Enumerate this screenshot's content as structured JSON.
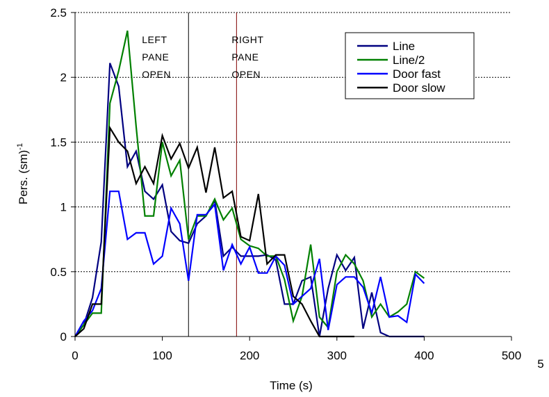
{
  "chart_data": {
    "type": "line",
    "xlabel": "Time (s)",
    "ylabel": "Pers. (sm)",
    "ylabel_superscript": "-1",
    "xlim": [
      0,
      500
    ],
    "ylim": [
      0,
      2.5
    ],
    "x_ticks": [
      "0",
      "100",
      "200",
      "300",
      "400",
      "500"
    ],
    "y_ticks": [
      "0",
      "0.5",
      "1",
      "1.5",
      "2",
      "2.5"
    ],
    "x_tick_values": [
      0,
      100,
      200,
      300,
      400,
      500
    ],
    "y_tick_values": [
      0,
      0.5,
      1,
      1.5,
      2,
      2.5
    ],
    "grid": "horizontal dashed",
    "legend_position": "top-right",
    "annotations": [
      {
        "lines": [
          "LEFT",
          "PANE",
          "OPEN"
        ],
        "x": 130
      },
      {
        "lines": [
          "RIGHT",
          "PANE",
          "OPEN"
        ],
        "x": 185
      }
    ],
    "vlines": [
      {
        "x": 130,
        "color": "#000000"
      },
      {
        "x": 185,
        "color": "#800000"
      }
    ],
    "stray_text": "5",
    "series": [
      {
        "name": "Line",
        "color": "#000080",
        "points": [
          [
            0,
            0
          ],
          [
            10,
            0.09
          ],
          [
            20,
            0.3
          ],
          [
            30,
            0.73
          ],
          [
            40,
            2.11
          ],
          [
            50,
            1.93
          ],
          [
            60,
            1.31
          ],
          [
            70,
            1.43
          ],
          [
            80,
            1.12
          ],
          [
            90,
            1.06
          ],
          [
            100,
            1.17
          ],
          [
            110,
            0.81
          ],
          [
            120,
            0.74
          ],
          [
            130,
            0.72
          ],
          [
            140,
            0.87
          ],
          [
            150,
            0.93
          ],
          [
            160,
            1.05
          ],
          [
            170,
            0.62
          ],
          [
            180,
            0.69
          ],
          [
            190,
            0.62
          ],
          [
            200,
            0.62
          ],
          [
            210,
            0.62
          ],
          [
            220,
            0.63
          ],
          [
            230,
            0.59
          ],
          [
            240,
            0.25
          ],
          [
            250,
            0.25
          ],
          [
            260,
            0.43
          ],
          [
            270,
            0.46
          ],
          [
            280,
            0.0
          ],
          [
            290,
            0.37
          ],
          [
            300,
            0.63
          ],
          [
            310,
            0.51
          ],
          [
            320,
            0.61
          ],
          [
            330,
            0.06
          ],
          [
            340,
            0.34
          ],
          [
            350,
            0.03
          ],
          [
            360,
            0.0
          ],
          [
            380,
            0.0
          ],
          [
            400,
            0.0
          ]
        ]
      },
      {
        "name": "Line/2",
        "color": "#008000",
        "points": [
          [
            0,
            0
          ],
          [
            10,
            0.09
          ],
          [
            20,
            0.18
          ],
          [
            30,
            0.18
          ],
          [
            40,
            1.8
          ],
          [
            50,
            2.05
          ],
          [
            60,
            2.36
          ],
          [
            70,
            1.62
          ],
          [
            80,
            0.93
          ],
          [
            90,
            0.93
          ],
          [
            100,
            1.5
          ],
          [
            110,
            1.24
          ],
          [
            120,
            1.36
          ],
          [
            130,
            0.75
          ],
          [
            140,
            0.93
          ],
          [
            150,
            0.93
          ],
          [
            160,
            1.06
          ],
          [
            170,
            0.9
          ],
          [
            180,
            0.99
          ],
          [
            190,
            0.75
          ],
          [
            200,
            0.7
          ],
          [
            210,
            0.68
          ],
          [
            220,
            0.62
          ],
          [
            230,
            0.62
          ],
          [
            240,
            0.44
          ],
          [
            250,
            0.12
          ],
          [
            260,
            0.31
          ],
          [
            270,
            0.71
          ],
          [
            280,
            0.15
          ],
          [
            290,
            0.07
          ],
          [
            300,
            0.5
          ],
          [
            310,
            0.63
          ],
          [
            320,
            0.56
          ],
          [
            330,
            0.43
          ],
          [
            340,
            0.15
          ],
          [
            350,
            0.25
          ],
          [
            360,
            0.15
          ],
          [
            370,
            0.19
          ],
          [
            380,
            0.25
          ],
          [
            390,
            0.5
          ],
          [
            400,
            0.45
          ]
        ]
      },
      {
        "name": "Door fast",
        "color": "#0000ff",
        "points": [
          [
            0,
            0
          ],
          [
            10,
            0.12
          ],
          [
            20,
            0.2
          ],
          [
            30,
            0.37
          ],
          [
            40,
            1.12
          ],
          [
            50,
            1.12
          ],
          [
            60,
            0.75
          ],
          [
            70,
            0.8
          ],
          [
            80,
            0.8
          ],
          [
            90,
            0.56
          ],
          [
            100,
            0.62
          ],
          [
            110,
            0.99
          ],
          [
            120,
            0.87
          ],
          [
            130,
            0.43
          ],
          [
            140,
            0.94
          ],
          [
            150,
            0.94
          ],
          [
            160,
            1.02
          ],
          [
            170,
            0.51
          ],
          [
            180,
            0.71
          ],
          [
            190,
            0.56
          ],
          [
            200,
            0.69
          ],
          [
            210,
            0.49
          ],
          [
            220,
            0.49
          ],
          [
            230,
            0.62
          ],
          [
            240,
            0.55
          ],
          [
            250,
            0.25
          ],
          [
            260,
            0.31
          ],
          [
            270,
            0.37
          ],
          [
            280,
            0.6
          ],
          [
            290,
            0.05
          ],
          [
            300,
            0.4
          ],
          [
            310,
            0.46
          ],
          [
            320,
            0.46
          ],
          [
            330,
            0.38
          ],
          [
            340,
            0.18
          ],
          [
            350,
            0.46
          ],
          [
            360,
            0.15
          ],
          [
            370,
            0.16
          ],
          [
            380,
            0.11
          ],
          [
            390,
            0.48
          ],
          [
            400,
            0.41
          ]
        ]
      },
      {
        "name": "Door slow",
        "color": "#000000",
        "points": [
          [
            0,
            0
          ],
          [
            10,
            0.06
          ],
          [
            20,
            0.25
          ],
          [
            30,
            0.25
          ],
          [
            40,
            1.61
          ],
          [
            50,
            1.5
          ],
          [
            60,
            1.43
          ],
          [
            70,
            1.18
          ],
          [
            80,
            1.31
          ],
          [
            90,
            1.18
          ],
          [
            100,
            1.55
          ],
          [
            110,
            1.37
          ],
          [
            120,
            1.49
          ],
          [
            130,
            1.3
          ],
          [
            140,
            1.46
          ],
          [
            150,
            1.11
          ],
          [
            160,
            1.46
          ],
          [
            170,
            1.07
          ],
          [
            180,
            1.12
          ],
          [
            190,
            0.77
          ],
          [
            200,
            0.74
          ],
          [
            210,
            1.1
          ],
          [
            220,
            0.56
          ],
          [
            230,
            0.63
          ],
          [
            240,
            0.63
          ],
          [
            250,
            0.31
          ],
          [
            260,
            0.25
          ],
          [
            270,
            0.12
          ],
          [
            280,
            0.0
          ],
          [
            290,
            0.0
          ],
          [
            300,
            0.0
          ],
          [
            310,
            0.0
          ],
          [
            320,
            0.0
          ]
        ]
      }
    ]
  }
}
